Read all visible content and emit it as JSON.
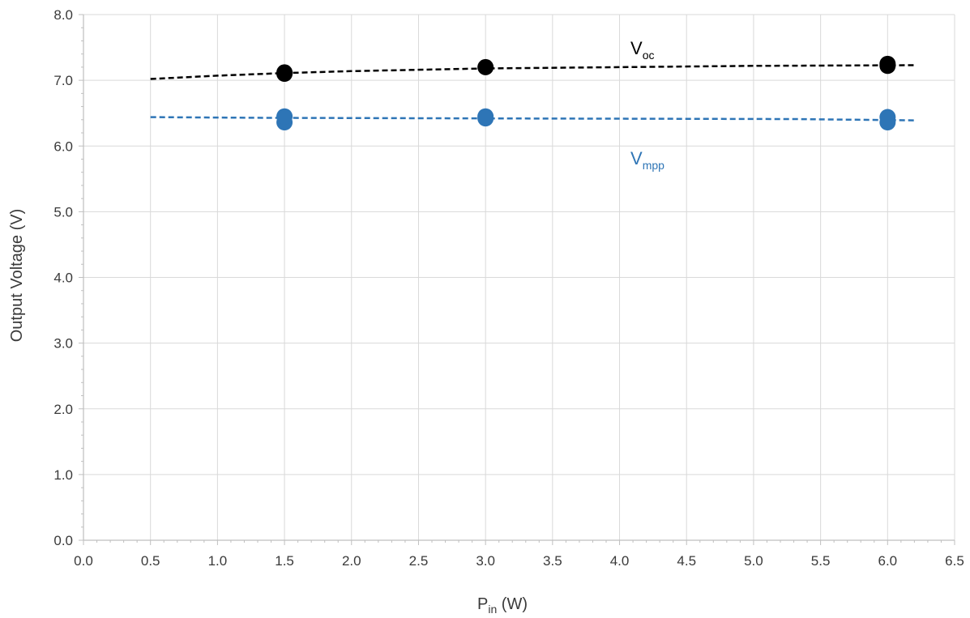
{
  "chart_data": {
    "type": "scatter",
    "xlabel": {
      "main": "P",
      "sub": "in",
      "unit": " (W)"
    },
    "ylabel": "Output Voltage (V)",
    "xlim": [
      0,
      6.5
    ],
    "ylim": [
      0,
      8
    ],
    "x_step": 0.5,
    "y_step": 1,
    "grid": true,
    "x_ticks": [
      "0.0",
      "0.5",
      "1.0",
      "1.5",
      "2.0",
      "2.5",
      "3.0",
      "3.5",
      "4.0",
      "4.5",
      "5.0",
      "5.5",
      "6.0",
      "6.5"
    ],
    "y_ticks": [
      "0.0",
      "1.0",
      "2.0",
      "3.0",
      "4.0",
      "5.0",
      "6.0",
      "7.0",
      "8.0"
    ],
    "series": [
      {
        "name": "Voc",
        "label_main": "V",
        "label_sub": "oc",
        "color": "#000000",
        "points": [
          {
            "x": 1.5,
            "y": 7.1
          },
          {
            "x": 1.5,
            "y": 7.12
          },
          {
            "x": 3.0,
            "y": 7.2
          },
          {
            "x": 6.0,
            "y": 7.22
          },
          {
            "x": 6.0,
            "y": 7.25
          }
        ],
        "trend": [
          {
            "x": 0.5,
            "y": 7.02
          },
          {
            "x": 1.0,
            "y": 7.07
          },
          {
            "x": 1.5,
            "y": 7.11
          },
          {
            "x": 2.0,
            "y": 7.14
          },
          {
            "x": 3.0,
            "y": 7.18
          },
          {
            "x": 4.0,
            "y": 7.2
          },
          {
            "x": 5.0,
            "y": 7.22
          },
          {
            "x": 6.2,
            "y": 7.23
          }
        ]
      },
      {
        "name": "Vmpp",
        "label_main": "V",
        "label_sub": "mpp",
        "color": "#2e75b6",
        "points": [
          {
            "x": 1.5,
            "y": 6.36
          },
          {
            "x": 1.5,
            "y": 6.45
          },
          {
            "x": 3.0,
            "y": 6.42
          },
          {
            "x": 3.0,
            "y": 6.45
          },
          {
            "x": 6.0,
            "y": 6.36
          },
          {
            "x": 6.0,
            "y": 6.44
          }
        ],
        "trend": [
          {
            "x": 0.5,
            "y": 6.44
          },
          {
            "x": 1.25,
            "y": 6.43
          },
          {
            "x": 3.0,
            "y": 6.42
          },
          {
            "x": 5.3,
            "y": 6.41
          },
          {
            "x": 6.2,
            "y": 6.39
          }
        ]
      }
    ]
  }
}
